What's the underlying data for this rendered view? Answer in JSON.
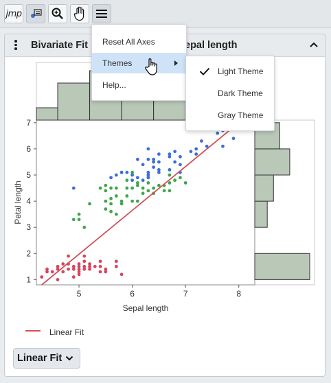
{
  "toolbar": {
    "logo": "jmp",
    "buttons": [
      {
        "icon": "annotate-icon"
      },
      {
        "icon": "zoom-icon"
      },
      {
        "icon": "hand-icon"
      },
      {
        "icon": "hamburger-menu-icon"
      }
    ]
  },
  "panel": {
    "title_left": "Bivariate Fit",
    "title_right": "epal length",
    "collapse_icon": "chevron-up-icon"
  },
  "menu": {
    "items": [
      {
        "label": "Reset All Axes"
      },
      {
        "label": "Themes"
      },
      {
        "label": "Help..."
      }
    ]
  },
  "submenu": {
    "items": [
      {
        "label": "Light Theme",
        "checked": true
      },
      {
        "label": "Dark Theme",
        "checked": false
      },
      {
        "label": "Gray Theme",
        "checked": false
      }
    ]
  },
  "legend": {
    "label": "Linear Fit",
    "color": "#d05058"
  },
  "fit_button": {
    "label": "Linear Fit"
  },
  "colors": {
    "setosa": "#d9455e",
    "versicolor": "#3fa74a",
    "virginica": "#3c6fd8",
    "hist_fill": "#b9c8b7"
  },
  "chart_data": {
    "type": "scatter",
    "xlabel": "Sepal length",
    "ylabel": "Petal length",
    "x_ticks": [
      "5",
      "6",
      "7",
      "8"
    ],
    "y_ticks": [
      "1",
      "2",
      "3",
      "4",
      "5",
      "6",
      "7"
    ],
    "xlim": [
      4.2,
      8.3
    ],
    "ylim": [
      0.8,
      7.1
    ],
    "fit_line": {
      "x": [
        4.3,
        8.0
      ],
      "y": [
        0.8,
        7.0
      ]
    },
    "series": [
      {
        "points": [
          [
            4.3,
            1.1
          ],
          [
            4.4,
            1.3
          ],
          [
            4.4,
            1.4
          ],
          [
            4.5,
            1.3
          ],
          [
            4.6,
            1.0
          ],
          [
            4.6,
            1.4
          ],
          [
            4.6,
            1.5
          ],
          [
            4.7,
            1.3
          ],
          [
            4.7,
            1.6
          ],
          [
            4.8,
            1.4
          ],
          [
            4.8,
            1.6
          ],
          [
            4.8,
            1.9
          ],
          [
            4.9,
            1.4
          ],
          [
            4.9,
            1.5
          ],
          [
            5.0,
            1.2
          ],
          [
            5.0,
            1.4
          ],
          [
            5.0,
            1.5
          ],
          [
            5.0,
            1.6
          ],
          [
            5.1,
            1.4
          ],
          [
            5.1,
            1.5
          ],
          [
            5.1,
            1.7
          ],
          [
            5.1,
            1.9
          ],
          [
            5.2,
            1.4
          ],
          [
            5.2,
            1.5
          ],
          [
            5.3,
            1.5
          ],
          [
            5.4,
            1.3
          ],
          [
            5.4,
            1.5
          ],
          [
            5.4,
            1.7
          ],
          [
            5.5,
            1.3
          ],
          [
            5.5,
            1.4
          ],
          [
            5.7,
            1.5
          ],
          [
            5.7,
            1.7
          ],
          [
            5.8,
            1.2
          ],
          [
            4.9,
            1.1
          ],
          [
            5.0,
            1.3
          ],
          [
            5.2,
            1.6
          ]
        ]
      },
      {
        "points": [
          [
            4.9,
            3.3
          ],
          [
            5.0,
            3.5
          ],
          [
            5.0,
            3.3
          ],
          [
            5.1,
            3.0
          ],
          [
            5.2,
            3.9
          ],
          [
            5.4,
            4.5
          ],
          [
            5.5,
            4.0
          ],
          [
            5.5,
            3.7
          ],
          [
            5.5,
            4.4
          ],
          [
            5.6,
            3.6
          ],
          [
            5.6,
            3.9
          ],
          [
            5.6,
            4.1
          ],
          [
            5.6,
            4.5
          ],
          [
            5.7,
            4.2
          ],
          [
            5.7,
            3.5
          ],
          [
            5.7,
            4.5
          ],
          [
            5.8,
            4.0
          ],
          [
            5.8,
            3.9
          ],
          [
            5.9,
            4.2
          ],
          [
            5.9,
            4.8
          ],
          [
            6.0,
            4.0
          ],
          [
            6.0,
            4.5
          ],
          [
            6.0,
            5.1
          ],
          [
            6.1,
            4.0
          ],
          [
            6.1,
            4.6
          ],
          [
            6.1,
            4.7
          ],
          [
            6.2,
            4.3
          ],
          [
            6.2,
            4.5
          ],
          [
            6.3,
            4.4
          ],
          [
            6.3,
            4.7
          ],
          [
            6.3,
            4.9
          ],
          [
            6.4,
            4.3
          ],
          [
            6.4,
            4.5
          ],
          [
            6.5,
            4.6
          ],
          [
            6.6,
            4.4
          ],
          [
            6.6,
            4.6
          ],
          [
            6.7,
            4.4
          ],
          [
            6.7,
            4.7
          ],
          [
            6.7,
            5.0
          ],
          [
            6.8,
            4.8
          ],
          [
            6.9,
            4.9
          ],
          [
            7.0,
            4.7
          ],
          [
            5.5,
            4.6
          ],
          [
            5.9,
            4.5
          ]
        ]
      },
      {
        "points": [
          [
            4.9,
            4.5
          ],
          [
            5.6,
            4.9
          ],
          [
            5.7,
            5.0
          ],
          [
            5.8,
            5.1
          ],
          [
            5.8,
            5.1
          ],
          [
            5.9,
            5.1
          ],
          [
            6.0,
            4.8
          ],
          [
            6.0,
            5.0
          ],
          [
            6.1,
            4.9
          ],
          [
            6.1,
            5.6
          ],
          [
            6.2,
            4.8
          ],
          [
            6.2,
            5.4
          ],
          [
            6.3,
            4.9
          ],
          [
            6.3,
            5.0
          ],
          [
            6.3,
            5.1
          ],
          [
            6.3,
            5.6
          ],
          [
            6.3,
            6.0
          ],
          [
            6.4,
            5.3
          ],
          [
            6.4,
            5.5
          ],
          [
            6.4,
            5.6
          ],
          [
            6.5,
            5.1
          ],
          [
            6.5,
            5.2
          ],
          [
            6.5,
            5.5
          ],
          [
            6.5,
            5.8
          ],
          [
            6.7,
            5.2
          ],
          [
            6.7,
            5.7
          ],
          [
            6.7,
            5.8
          ],
          [
            6.8,
            5.5
          ],
          [
            6.8,
            5.9
          ],
          [
            6.9,
            5.1
          ],
          [
            6.9,
            5.4
          ],
          [
            6.9,
            5.7
          ],
          [
            7.1,
            5.9
          ],
          [
            7.2,
            5.8
          ],
          [
            7.2,
            6.0
          ],
          [
            7.3,
            6.3
          ],
          [
            7.4,
            6.1
          ],
          [
            7.6,
            6.6
          ],
          [
            7.7,
            6.7
          ],
          [
            7.9,
            6.4
          ],
          [
            7.7,
            6.9
          ],
          [
            7.7,
            6.1
          ]
        ]
      }
    ],
    "top_histogram": {
      "bin_edges": [
        4.2,
        4.6,
        5.2,
        5.8,
        6.4,
        7.0
      ],
      "heights": [
        1,
        3,
        4,
        2,
        2
      ]
    },
    "right_histogram": {
      "bin_edges": [
        1,
        2,
        3,
        4,
        5,
        6,
        7
      ],
      "heights": [
        2.2,
        0,
        0.5,
        0.75,
        1.4,
        1.0
      ]
    }
  }
}
